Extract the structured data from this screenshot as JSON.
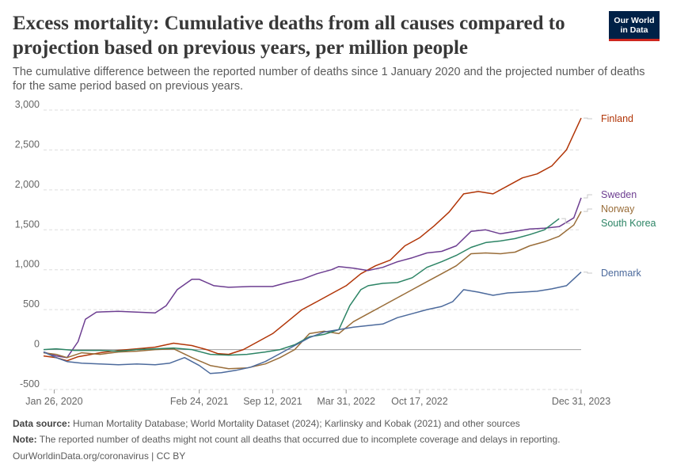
{
  "header": {
    "title": "Excess mortality: Cumulative deaths from all causes compared to projection based on previous years, per million people",
    "subtitle": "The cumulative difference between the reported number of deaths since 1 January 2020 and the projected number of deaths for the same period based on previous years.",
    "logo_line1": "Our World",
    "logo_line2": "in Data"
  },
  "footer": {
    "source_label": "Data source:",
    "source_text": "Human Mortality Database; World Mortality Dataset (2024); Karlinsky and Kobak (2021) and other sources",
    "note_label": "Note:",
    "note_text": "The reported number of deaths might not count all deaths that occurred due to incomplete coverage and delays in reporting.",
    "credit": "OurWorldinData.org/coronavirus | CC BY"
  },
  "chart_data": {
    "type": "line",
    "title": "Excess mortality: Cumulative deaths from all causes compared to projection based on previous years, per million people",
    "xlabel": "",
    "ylabel": "",
    "x_unit": "days since 2020-01-01",
    "xlim": [
      -4,
      1460
    ],
    "ylim": [
      -500,
      3000
    ],
    "y_ticks": [
      -500,
      0,
      500,
      1000,
      1500,
      2000,
      2500,
      3000
    ],
    "y_tick_labels": [
      "-500",
      "0",
      "500",
      "1,000",
      "1,500",
      "2,000",
      "2,500",
      "3,000"
    ],
    "x_ticks": [
      25,
      420,
      620,
      820,
      1020,
      1460
    ],
    "x_tick_labels": [
      "Jan 26, 2020",
      "Feb 24, 2021",
      "Sep 12, 2021",
      "Mar 31, 2022",
      "Oct 17, 2022",
      "Dec 31, 2023"
    ],
    "grid": "horizontal dashed",
    "series": [
      {
        "name": "Finland",
        "color": "#b13507",
        "x": [
          -4,
          30,
          60,
          90,
          150,
          200,
          250,
          300,
          350,
          400,
          440,
          470,
          500,
          540,
          580,
          620,
          660,
          700,
          740,
          780,
          820,
          860,
          900,
          940,
          980,
          1020,
          1060,
          1100,
          1140,
          1180,
          1220,
          1260,
          1300,
          1340,
          1380,
          1420,
          1460
        ],
        "y": [
          -80,
          -100,
          -140,
          -90,
          -40,
          -10,
          10,
          30,
          80,
          50,
          0,
          -50,
          -60,
          0,
          100,
          200,
          350,
          500,
          600,
          700,
          800,
          950,
          1050,
          1120,
          1300,
          1400,
          1550,
          1720,
          1950,
          1980,
          1950,
          2050,
          2150,
          2200,
          2300,
          2500,
          2900
        ]
      },
      {
        "name": "Sweden",
        "color": "#6d3e91",
        "x": [
          -4,
          30,
          60,
          90,
          110,
          140,
          200,
          250,
          300,
          330,
          360,
          400,
          420,
          460,
          500,
          560,
          620,
          660,
          700,
          740,
          780,
          800,
          840,
          880,
          920,
          960,
          1000,
          1040,
          1080,
          1120,
          1160,
          1200,
          1240,
          1280,
          1320,
          1360,
          1400,
          1440,
          1460
        ],
        "y": [
          -30,
          -80,
          -100,
          100,
          380,
          470,
          480,
          470,
          460,
          550,
          750,
          880,
          880,
          800,
          780,
          790,
          790,
          840,
          880,
          950,
          1000,
          1040,
          1020,
          990,
          1030,
          1100,
          1150,
          1210,
          1230,
          1300,
          1480,
          1500,
          1450,
          1480,
          1510,
          1520,
          1540,
          1650,
          1900
        ]
      },
      {
        "name": "Norway",
        "color": "#996d39",
        "x": [
          -4,
          30,
          60,
          100,
          150,
          200,
          250,
          300,
          350,
          400,
          450,
          500,
          550,
          600,
          640,
          680,
          720,
          760,
          800,
          840,
          880,
          920,
          960,
          1000,
          1040,
          1080,
          1120,
          1160,
          1200,
          1240,
          1280,
          1320,
          1360,
          1400,
          1440,
          1460
        ],
        "y": [
          -40,
          -60,
          -100,
          -40,
          -60,
          -30,
          -20,
          0,
          10,
          -100,
          -200,
          -240,
          -230,
          -180,
          -100,
          0,
          200,
          230,
          200,
          350,
          450,
          550,
          650,
          750,
          850,
          950,
          1050,
          1200,
          1210,
          1200,
          1220,
          1300,
          1350,
          1420,
          1560,
          1730
        ]
      },
      {
        "name": "South Korea",
        "color": "#2c8465",
        "x": [
          -4,
          30,
          80,
          150,
          200,
          250,
          300,
          350,
          400,
          450,
          500,
          550,
          600,
          640,
          680,
          720,
          760,
          800,
          830,
          860,
          880,
          920,
          960,
          1000,
          1040,
          1080,
          1120,
          1160,
          1200,
          1240,
          1280,
          1320,
          1360,
          1400
        ],
        "y": [
          0,
          10,
          -10,
          -10,
          -20,
          0,
          10,
          20,
          0,
          -60,
          -70,
          -60,
          -30,
          0,
          60,
          160,
          190,
          250,
          550,
          750,
          800,
          830,
          840,
          900,
          1030,
          1100,
          1180,
          1280,
          1340,
          1360,
          1390,
          1440,
          1500,
          1640
        ]
      },
      {
        "name": "Denmark",
        "color": "#4c6a9c",
        "x": [
          -4,
          30,
          60,
          100,
          150,
          200,
          250,
          300,
          340,
          380,
          420,
          450,
          480,
          520,
          560,
          600,
          640,
          680,
          720,
          760,
          800,
          840,
          880,
          920,
          960,
          1000,
          1040,
          1080,
          1110,
          1140,
          1180,
          1220,
          1260,
          1300,
          1340,
          1380,
          1420,
          1460
        ],
        "y": [
          -30,
          -100,
          -150,
          -170,
          -180,
          -190,
          -180,
          -190,
          -170,
          -100,
          -200,
          -300,
          -290,
          -260,
          -220,
          -150,
          -50,
          50,
          150,
          220,
          250,
          280,
          300,
          320,
          400,
          450,
          500,
          540,
          600,
          750,
          720,
          680,
          710,
          720,
          730,
          760,
          800,
          970
        ]
      }
    ]
  }
}
